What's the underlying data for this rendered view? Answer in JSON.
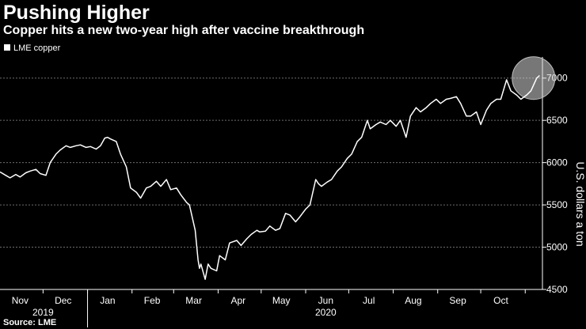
{
  "chart_data": {
    "type": "line",
    "title": "Pushing Higher",
    "subtitle": "Copper hits a new two-year high after vaccine breakthrough",
    "source": "Source: LME",
    "ylabel": "U.S. dollars a ton",
    "ylim": [
      4500,
      7250
    ],
    "yticks": [
      4500,
      5000,
      5500,
      6000,
      6500,
      7000
    ],
    "xlim": [
      "2019-11-01",
      "2020-11-13"
    ],
    "grid": "horizontal-dashed",
    "legend": "top-left",
    "line_color": "#ffffff",
    "highlight": {
      "x": "2020-11-09",
      "y": 7000,
      "color": "#d9d9d9"
    },
    "month_ticks": [
      {
        "date": "2019-11-15",
        "label": "Nov"
      },
      {
        "date": "2019-12-15",
        "label": "Dec"
      },
      {
        "date": "2020-01-15",
        "label": "Jan"
      },
      {
        "date": "2020-02-15",
        "label": "Feb"
      },
      {
        "date": "2020-03-15",
        "label": "Mar"
      },
      {
        "date": "2020-04-15",
        "label": "Apr"
      },
      {
        "date": "2020-05-15",
        "label": "May"
      },
      {
        "date": "2020-06-15",
        "label": "Jun"
      },
      {
        "date": "2020-07-15",
        "label": "Jul"
      },
      {
        "date": "2020-08-15",
        "label": "Aug"
      },
      {
        "date": "2020-09-15",
        "label": "Sep"
      },
      {
        "date": "2020-10-15",
        "label": "Oct"
      }
    ],
    "year_labels": [
      {
        "date": "2019-12-01",
        "label": "2019"
      },
      {
        "date": "2020-06-15",
        "label": "2020"
      }
    ],
    "series": [
      {
        "name": "LME copper",
        "points": [
          [
            "2019-11-01",
            5890
          ],
          [
            "2019-11-05",
            5850
          ],
          [
            "2019-11-08",
            5820
          ],
          [
            "2019-11-12",
            5860
          ],
          [
            "2019-11-15",
            5830
          ],
          [
            "2019-11-19",
            5880
          ],
          [
            "2019-11-22",
            5900
          ],
          [
            "2019-11-26",
            5920
          ],
          [
            "2019-11-29",
            5870
          ],
          [
            "2019-12-03",
            5850
          ],
          [
            "2019-12-06",
            6000
          ],
          [
            "2019-12-10",
            6100
          ],
          [
            "2019-12-13",
            6150
          ],
          [
            "2019-12-17",
            6200
          ],
          [
            "2019-12-20",
            6180
          ],
          [
            "2019-12-24",
            6200
          ],
          [
            "2019-12-27",
            6210
          ],
          [
            "2019-12-31",
            6180
          ],
          [
            "2020-01-03",
            6190
          ],
          [
            "2020-01-07",
            6160
          ],
          [
            "2020-01-10",
            6200
          ],
          [
            "2020-01-13",
            6290
          ],
          [
            "2020-01-15",
            6300
          ],
          [
            "2020-01-17",
            6280
          ],
          [
            "2020-01-21",
            6250
          ],
          [
            "2020-01-24",
            6100
          ],
          [
            "2020-01-28",
            5950
          ],
          [
            "2020-01-31",
            5700
          ],
          [
            "2020-02-04",
            5650
          ],
          [
            "2020-02-07",
            5580
          ],
          [
            "2020-02-11",
            5700
          ],
          [
            "2020-02-14",
            5720
          ],
          [
            "2020-02-18",
            5780
          ],
          [
            "2020-02-21",
            5720
          ],
          [
            "2020-02-25",
            5800
          ],
          [
            "2020-02-28",
            5680
          ],
          [
            "2020-03-03",
            5700
          ],
          [
            "2020-03-06",
            5620
          ],
          [
            "2020-03-10",
            5530
          ],
          [
            "2020-03-12",
            5500
          ],
          [
            "2020-03-16",
            5200
          ],
          [
            "2020-03-18",
            4850
          ],
          [
            "2020-03-19",
            4750
          ],
          [
            "2020-03-20",
            4800
          ],
          [
            "2020-03-23",
            4620
          ],
          [
            "2020-03-25",
            4800
          ],
          [
            "2020-03-27",
            4750
          ],
          [
            "2020-03-31",
            4720
          ],
          [
            "2020-04-02",
            4900
          ],
          [
            "2020-04-06",
            4850
          ],
          [
            "2020-04-09",
            5050
          ],
          [
            "2020-04-14",
            5080
          ],
          [
            "2020-04-17",
            5020
          ],
          [
            "2020-04-21",
            5100
          ],
          [
            "2020-04-24",
            5150
          ],
          [
            "2020-04-28",
            5200
          ],
          [
            "2020-04-30",
            5180
          ],
          [
            "2020-05-04",
            5190
          ],
          [
            "2020-05-07",
            5250
          ],
          [
            "2020-05-11",
            5200
          ],
          [
            "2020-05-14",
            5220
          ],
          [
            "2020-05-18",
            5400
          ],
          [
            "2020-05-21",
            5380
          ],
          [
            "2020-05-25",
            5300
          ],
          [
            "2020-05-28",
            5360
          ],
          [
            "2020-06-01",
            5450
          ],
          [
            "2020-06-04",
            5500
          ],
          [
            "2020-06-08",
            5800
          ],
          [
            "2020-06-10",
            5750
          ],
          [
            "2020-06-12",
            5720
          ],
          [
            "2020-06-16",
            5770
          ],
          [
            "2020-06-19",
            5800
          ],
          [
            "2020-06-23",
            5900
          ],
          [
            "2020-06-26",
            5950
          ],
          [
            "2020-06-30",
            6050
          ],
          [
            "2020-07-03",
            6100
          ],
          [
            "2020-07-07",
            6250
          ],
          [
            "2020-07-10",
            6300
          ],
          [
            "2020-07-14",
            6500
          ],
          [
            "2020-07-16",
            6400
          ],
          [
            "2020-07-20",
            6450
          ],
          [
            "2020-07-23",
            6480
          ],
          [
            "2020-07-27",
            6450
          ],
          [
            "2020-07-30",
            6500
          ],
          [
            "2020-08-03",
            6430
          ],
          [
            "2020-08-06",
            6500
          ],
          [
            "2020-08-10",
            6300
          ],
          [
            "2020-08-13",
            6550
          ],
          [
            "2020-08-17",
            6650
          ],
          [
            "2020-08-20",
            6600
          ],
          [
            "2020-08-24",
            6650
          ],
          [
            "2020-08-27",
            6700
          ],
          [
            "2020-08-31",
            6750
          ],
          [
            "2020-09-03",
            6700
          ],
          [
            "2020-09-07",
            6750
          ],
          [
            "2020-09-10",
            6760
          ],
          [
            "2020-09-14",
            6780
          ],
          [
            "2020-09-17",
            6700
          ],
          [
            "2020-09-21",
            6550
          ],
          [
            "2020-09-24",
            6550
          ],
          [
            "2020-09-28",
            6600
          ],
          [
            "2020-10-01",
            6450
          ],
          [
            "2020-10-05",
            6620
          ],
          [
            "2020-10-08",
            6700
          ],
          [
            "2020-10-12",
            6750
          ],
          [
            "2020-10-15",
            6750
          ],
          [
            "2020-10-19",
            6980
          ],
          [
            "2020-10-22",
            6850
          ],
          [
            "2020-10-26",
            6800
          ],
          [
            "2020-10-29",
            6750
          ],
          [
            "2020-11-02",
            6800
          ],
          [
            "2020-11-05",
            6850
          ],
          [
            "2020-11-09",
            7000
          ],
          [
            "2020-11-11",
            7030
          ]
        ]
      }
    ]
  }
}
